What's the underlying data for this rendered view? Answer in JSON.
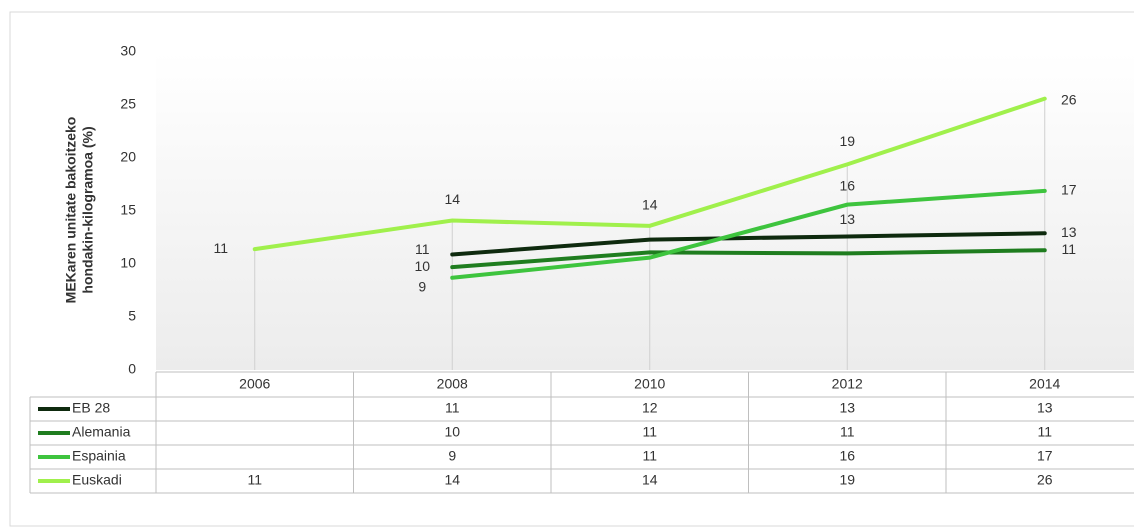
{
  "chart_data": {
    "type": "line",
    "ylabel": [
      "MEKaren unitate bakoitzeko",
      "hondakin-kilogramoa (%)"
    ],
    "categories": [
      "2006",
      "2008",
      "2010",
      "2012",
      "2014"
    ],
    "ylim": [
      0,
      30
    ],
    "yticks": [
      0,
      5,
      10,
      15,
      20,
      25,
      30
    ],
    "series": [
      {
        "name": "EB 28",
        "color": "#0e2a0e",
        "values": [
          null,
          10.9,
          12.3,
          12.6,
          12.9
        ],
        "value_labels": [
          null,
          "11",
          "12",
          "13",
          "13"
        ]
      },
      {
        "name": "Alemania",
        "color": "#1f7d1f",
        "values": [
          null,
          9.7,
          11.1,
          11.0,
          11.3
        ],
        "value_labels": [
          null,
          "10",
          "11",
          "11",
          "11"
        ]
      },
      {
        "name": "Espainia",
        "color": "#3ec43e",
        "values": [
          null,
          8.7,
          10.6,
          15.6,
          16.9
        ],
        "value_labels": [
          null,
          "9",
          "11",
          "16",
          "17"
        ]
      },
      {
        "name": "Euskadi",
        "color": "#a0f04c",
        "values": [
          11.4,
          14.1,
          13.6,
          19.4,
          25.6
        ],
        "value_labels": [
          "11",
          "14",
          "14",
          "19",
          "26"
        ]
      }
    ]
  }
}
